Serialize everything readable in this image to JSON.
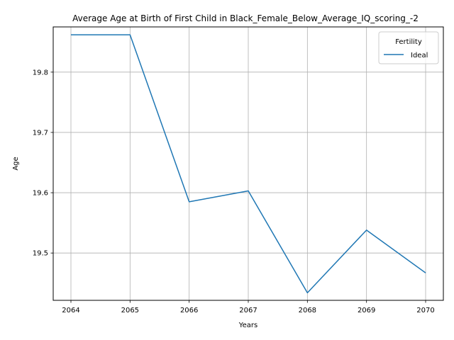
{
  "chart_data": {
    "type": "line",
    "title": "Average Age at Birth of First Child in Black_Female_Below_Average_IQ_scoring_-2",
    "xlabel": "Years",
    "ylabel": "Age",
    "x": [
      2064,
      2065,
      2066,
      2067,
      2068,
      2069,
      2070
    ],
    "x_ticks": [
      "2064",
      "2065",
      "2066",
      "2067",
      "2068",
      "2069",
      "2070"
    ],
    "y_ticks": [
      "19.5",
      "19.6",
      "19.7",
      "19.8"
    ],
    "y_tick_values": [
      19.5,
      19.6,
      19.7,
      19.8
    ],
    "xlim": [
      2063.7,
      2070.3
    ],
    "ylim": [
      19.4215,
      19.875
    ],
    "grid": true,
    "legend": {
      "title": "Fertility",
      "position": "top-right"
    },
    "series": [
      {
        "name": "Ideal",
        "color": "#1f77b4",
        "values": [
          19.862,
          19.862,
          19.585,
          19.603,
          19.434,
          19.538,
          19.467
        ]
      }
    ]
  }
}
